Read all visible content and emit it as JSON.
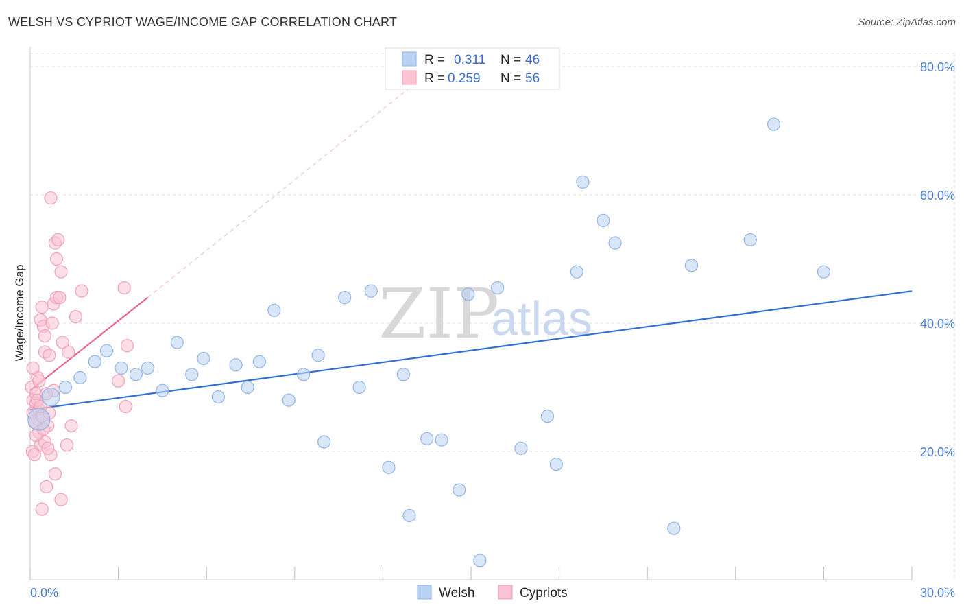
{
  "header": {
    "title": "WELSH VS CYPRIOT WAGE/INCOME GAP CORRELATION CHART",
    "source": "Source: ZipAtlas.com"
  },
  "colors": {
    "welsh_fill": "#b9d2f3",
    "welsh_stroke": "#8fb3e6",
    "welsh_line": "#2f6fd1",
    "cypriot_fill": "#f9c3d2",
    "cypriot_stroke": "#ee9fb7",
    "cypriot_line": "#e8658e"
  },
  "legend": {
    "rows": [
      {
        "r_label": "R =",
        "r_value": "0.311",
        "n_label": "N =",
        "n_value": "46"
      },
      {
        "r_label": "R =",
        "r_value": "0.259",
        "n_label": "N =",
        "n_value": "56"
      }
    ]
  },
  "bottom_legend": {
    "welsh": "Welsh",
    "cypriots": "Cypriots"
  },
  "watermark": {
    "zip": "ZIP",
    "atlas": "atlas"
  },
  "chart_data": {
    "type": "scatter",
    "title": "WELSH VS CYPRIOT WAGE/INCOME GAP CORRELATION CHART",
    "xlabel": "",
    "ylabel": "Wage/Income Gap",
    "xlim": [
      0,
      30
    ],
    "ylim": [
      0,
      80
    ],
    "x_tick_labels": [
      "0.0%",
      "30.0%"
    ],
    "y_ticks": [
      20,
      40,
      60,
      80
    ],
    "y_tick_labels": [
      "20.0%",
      "40.0%",
      "60.0%",
      "80.0%"
    ],
    "grid": true,
    "series": [
      {
        "name": "Welsh",
        "R": 0.311,
        "N": 46,
        "trend": {
          "x": [
            0,
            30
          ],
          "y": [
            26.5,
            45.0
          ]
        },
        "points": [
          [
            0.3,
            25.0,
            16
          ],
          [
            0.7,
            28.5,
            13
          ],
          [
            1.2,
            30.0,
            9
          ],
          [
            1.7,
            31.5,
            9
          ],
          [
            2.2,
            34.0,
            9
          ],
          [
            2.6,
            35.7,
            9
          ],
          [
            3.1,
            33.0,
            9
          ],
          [
            3.6,
            32.0,
            9
          ],
          [
            4.0,
            33.0,
            9
          ],
          [
            4.5,
            29.5,
            9
          ],
          [
            5.0,
            37.0,
            9
          ],
          [
            5.5,
            32.0,
            9
          ],
          [
            5.9,
            34.5,
            9
          ],
          [
            6.4,
            28.5,
            9
          ],
          [
            7.0,
            33.5,
            9
          ],
          [
            7.4,
            30.0,
            9
          ],
          [
            7.8,
            34.0,
            9
          ],
          [
            8.3,
            42.0,
            9
          ],
          [
            8.8,
            28.0,
            9
          ],
          [
            9.3,
            32.0,
            9
          ],
          [
            9.8,
            35.0,
            9
          ],
          [
            10.0,
            21.5,
            9
          ],
          [
            10.7,
            44.0,
            9
          ],
          [
            11.2,
            30.0,
            9
          ],
          [
            11.6,
            45.0,
            9
          ],
          [
            12.2,
            17.5,
            9
          ],
          [
            12.7,
            32.0,
            9
          ],
          [
            12.9,
            10.0,
            9
          ],
          [
            13.5,
            22.0,
            9
          ],
          [
            14.0,
            21.8,
            9
          ],
          [
            14.6,
            14.0,
            9
          ],
          [
            14.9,
            44.5,
            9
          ],
          [
            15.3,
            3.0,
            9
          ],
          [
            15.9,
            45.5,
            9
          ],
          [
            16.7,
            20.5,
            9
          ],
          [
            17.6,
            25.5,
            9
          ],
          [
            17.9,
            18.0,
            9
          ],
          [
            18.6,
            48.0,
            9
          ],
          [
            18.8,
            62.0,
            9
          ],
          [
            19.5,
            56.0,
            9
          ],
          [
            19.9,
            52.5,
            9
          ],
          [
            21.9,
            8.0,
            9
          ],
          [
            22.5,
            49.0,
            9
          ],
          [
            24.5,
            53.0,
            9
          ],
          [
            25.3,
            71.0,
            9
          ],
          [
            27.0,
            48.0,
            9
          ]
        ]
      },
      {
        "name": "Cypriots",
        "R": 0.259,
        "N": 56,
        "trend": {
          "x": [
            0,
            4.0
          ],
          "y": [
            29.5,
            44.0
          ]
        },
        "trend_extension": {
          "x": [
            4.0,
            13.0
          ],
          "y": [
            44.0,
            77.0
          ]
        },
        "points": [
          [
            0.05,
            30.0,
            9
          ],
          [
            0.1,
            28.0,
            9
          ],
          [
            0.1,
            26.0,
            9
          ],
          [
            0.15,
            24.5,
            9
          ],
          [
            0.2,
            27.5,
            9
          ],
          [
            0.2,
            29.0,
            9
          ],
          [
            0.25,
            31.5,
            9
          ],
          [
            0.25,
            25.0,
            9
          ],
          [
            0.3,
            26.5,
            9
          ],
          [
            0.3,
            23.0,
            9
          ],
          [
            0.35,
            21.0,
            9
          ],
          [
            0.35,
            40.5,
            9
          ],
          [
            0.4,
            42.5,
            9
          ],
          [
            0.4,
            11.0,
            9
          ],
          [
            0.45,
            39.5,
            9
          ],
          [
            0.5,
            35.5,
            9
          ],
          [
            0.5,
            38.0,
            9
          ],
          [
            0.55,
            14.5,
            9
          ],
          [
            0.6,
            24.0,
            9
          ],
          [
            0.65,
            35.0,
            9
          ],
          [
            0.7,
            19.5,
            9
          ],
          [
            0.7,
            59.5,
            9
          ],
          [
            0.75,
            40.0,
            9
          ],
          [
            0.8,
            43.0,
            9
          ],
          [
            0.85,
            52.5,
            9
          ],
          [
            0.85,
            16.5,
            9
          ],
          [
            0.9,
            50.0,
            9
          ],
          [
            0.9,
            44.0,
            9
          ],
          [
            0.95,
            53.0,
            9
          ],
          [
            1.0,
            44.0,
            9
          ],
          [
            1.05,
            48.0,
            9
          ],
          [
            1.05,
            12.5,
            9
          ],
          [
            1.1,
            37.0,
            9
          ],
          [
            1.25,
            21.0,
            9
          ],
          [
            1.3,
            35.5,
            9
          ],
          [
            1.4,
            24.0,
            9
          ],
          [
            1.55,
            41.0,
            9
          ],
          [
            1.75,
            45.0,
            9
          ],
          [
            3.0,
            31.0,
            9
          ],
          [
            3.2,
            45.5,
            9
          ],
          [
            3.25,
            27.0,
            9
          ],
          [
            3.3,
            36.5,
            9
          ],
          [
            0.08,
            20.0,
            9
          ],
          [
            0.15,
            19.5,
            9
          ],
          [
            0.3,
            31.0,
            9
          ],
          [
            0.5,
            21.5,
            9
          ],
          [
            0.6,
            20.5,
            9
          ],
          [
            0.8,
            29.5,
            9
          ],
          [
            0.2,
            22.5,
            9
          ],
          [
            0.4,
            25.5,
            9
          ],
          [
            0.65,
            26.0,
            9
          ],
          [
            0.1,
            33.0,
            9
          ],
          [
            0.25,
            28.0,
            9
          ],
          [
            0.45,
            23.5,
            9
          ],
          [
            0.55,
            29.0,
            9
          ],
          [
            0.35,
            27.0,
            9
          ]
        ]
      }
    ]
  }
}
